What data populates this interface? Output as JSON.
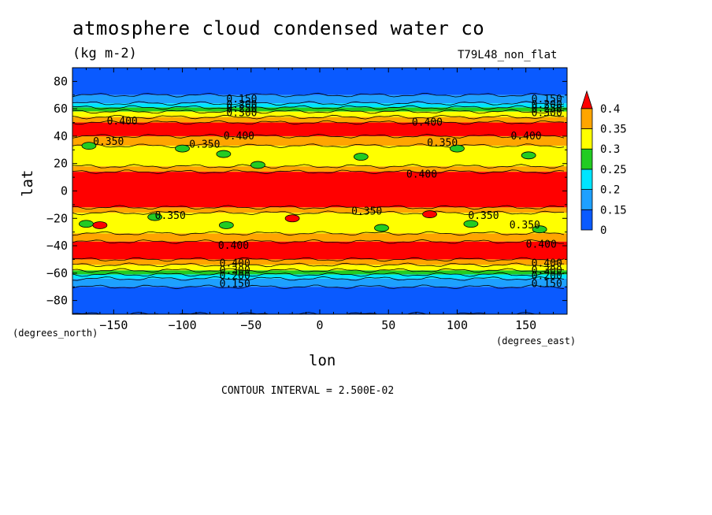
{
  "chart_data": {
    "type": "heatmap",
    "title": "atmosphere cloud condensed water co",
    "units": "(kg m-2)",
    "experiment": "T79L48_non_flat",
    "xlabel": "lon",
    "ylabel": "lat",
    "x_units_label": "(degrees_east)",
    "y_units_label": "(degrees_north)",
    "xlim": [
      -180,
      180
    ],
    "ylim": [
      -90,
      90
    ],
    "x_ticks": [
      -150,
      -100,
      -50,
      0,
      50,
      100,
      150
    ],
    "y_ticks": [
      80,
      60,
      40,
      20,
      0,
      -20,
      -40,
      -60,
      -80
    ],
    "contour_interval_text": "CONTOUR INTERVAL = 2.500E-02",
    "colorbar": {
      "levels": [
        "0",
        "0.15",
        "0.2",
        "0.25",
        "0.3",
        "0.35",
        "0.4"
      ],
      "colors": [
        "#0a5aff",
        "#1ea0ff",
        "#00e5ff",
        "#22cc22",
        "#ffff00",
        "#ffa500",
        "#ff0000"
      ]
    },
    "latitude_bands": [
      {
        "lat": [
          70,
          90
        ],
        "value_class": 0
      },
      {
        "lat": [
          64,
          70
        ],
        "value_class": 1
      },
      {
        "lat": [
          61,
          64
        ],
        "value_class": 2
      },
      {
        "lat": [
          58,
          61
        ],
        "value_class": 3
      },
      {
        "lat": [
          54,
          58
        ],
        "value_class": 4
      },
      {
        "lat": [
          50,
          54
        ],
        "value_class": 5
      },
      {
        "lat": [
          40,
          50
        ],
        "value_class": 6
      },
      {
        "lat": [
          33,
          40
        ],
        "value_class": 5
      },
      {
        "lat": [
          18,
          33
        ],
        "value_class": 4
      },
      {
        "lat": [
          14,
          18
        ],
        "value_class": 5
      },
      {
        "lat": [
          -12,
          14
        ],
        "value_class": 6
      },
      {
        "lat": [
          -16,
          -12
        ],
        "value_class": 5
      },
      {
        "lat": [
          -31,
          -16
        ],
        "value_class": 4
      },
      {
        "lat": [
          -37,
          -31
        ],
        "value_class": 5
      },
      {
        "lat": [
          -50,
          -37
        ],
        "value_class": 6
      },
      {
        "lat": [
          -54,
          -50
        ],
        "value_class": 5
      },
      {
        "lat": [
          -58,
          -54
        ],
        "value_class": 4
      },
      {
        "lat": [
          -61,
          -58
        ],
        "value_class": 3
      },
      {
        "lat": [
          -64,
          -61
        ],
        "value_class": 2
      },
      {
        "lat": [
          -70,
          -64
        ],
        "value_class": 1
      },
      {
        "lat": [
          -90,
          -70
        ],
        "value_class": 0
      }
    ],
    "blobs": [
      {
        "lon": -168,
        "lat": 33,
        "value_class": 3
      },
      {
        "lon": -100,
        "lat": 31,
        "value_class": 3
      },
      {
        "lon": -70,
        "lat": 27,
        "value_class": 3
      },
      {
        "lon": -45,
        "lat": 19,
        "value_class": 3
      },
      {
        "lon": 30,
        "lat": 25,
        "value_class": 3
      },
      {
        "lon": 100,
        "lat": 31,
        "value_class": 3
      },
      {
        "lon": 152,
        "lat": 26,
        "value_class": 3
      },
      {
        "lon": -170,
        "lat": -24,
        "value_class": 3
      },
      {
        "lon": -120,
        "lat": -19,
        "value_class": 3
      },
      {
        "lon": -68,
        "lat": -25,
        "value_class": 3
      },
      {
        "lon": 45,
        "lat": -27,
        "value_class": 3
      },
      {
        "lon": 110,
        "lat": -24,
        "value_class": 3
      },
      {
        "lon": 160,
        "lat": -28,
        "value_class": 3
      },
      {
        "lon": -160,
        "lat": -25,
        "value_class": 6
      },
      {
        "lon": -20,
        "lat": -20,
        "value_class": 6
      },
      {
        "lon": 80,
        "lat": -17,
        "value_class": 6
      }
    ],
    "contour_labels": [
      {
        "text": "0.150",
        "lon": -68,
        "lat": 67
      },
      {
        "text": "0.200",
        "lon": -68,
        "lat": 63
      },
      {
        "text": "0.250",
        "lon": -68,
        "lat": 60
      },
      {
        "text": "0.300",
        "lon": -68,
        "lat": 57
      },
      {
        "text": "0.400",
        "lon": -155,
        "lat": 51
      },
      {
        "text": "0.150",
        "lon": 154,
        "lat": 67
      },
      {
        "text": "0.200",
        "lon": 154,
        "lat": 63
      },
      {
        "text": "0.250",
        "lon": 154,
        "lat": 60
      },
      {
        "text": "0.300",
        "lon": 154,
        "lat": 57
      },
      {
        "text": "0.400",
        "lon": 67,
        "lat": 50
      },
      {
        "text": "0.400",
        "lon": -70,
        "lat": 40
      },
      {
        "text": "0.350",
        "lon": -165,
        "lat": 36
      },
      {
        "text": "0.350",
        "lon": -95,
        "lat": 34
      },
      {
        "text": "0.400",
        "lon": 139,
        "lat": 40
      },
      {
        "text": "0.350",
        "lon": 78,
        "lat": 35
      },
      {
        "text": "0.400",
        "lon": 63,
        "lat": 12
      },
      {
        "text": "0.350",
        "lon": 23,
        "lat": -15
      },
      {
        "text": "0.350",
        "lon": -120,
        "lat": -18
      },
      {
        "text": "0.350",
        "lon": 108,
        "lat": -18
      },
      {
        "text": "0.350",
        "lon": 138,
        "lat": -25
      },
      {
        "text": "0.400",
        "lon": -74,
        "lat": -40
      },
      {
        "text": "0.400",
        "lon": 150,
        "lat": -39
      },
      {
        "text": "0.400",
        "lon": -73,
        "lat": -53
      },
      {
        "text": "0.300",
        "lon": -73,
        "lat": -58
      },
      {
        "text": "0.200",
        "lon": -73,
        "lat": -62
      },
      {
        "text": "0.150",
        "lon": -73,
        "lat": -68
      },
      {
        "text": "0.400",
        "lon": 154,
        "lat": -53
      },
      {
        "text": "0.300",
        "lon": 154,
        "lat": -58
      },
      {
        "text": "0.200",
        "lon": 154,
        "lat": -62
      },
      {
        "text": "0.150",
        "lon": 154,
        "lat": -68
      }
    ]
  }
}
